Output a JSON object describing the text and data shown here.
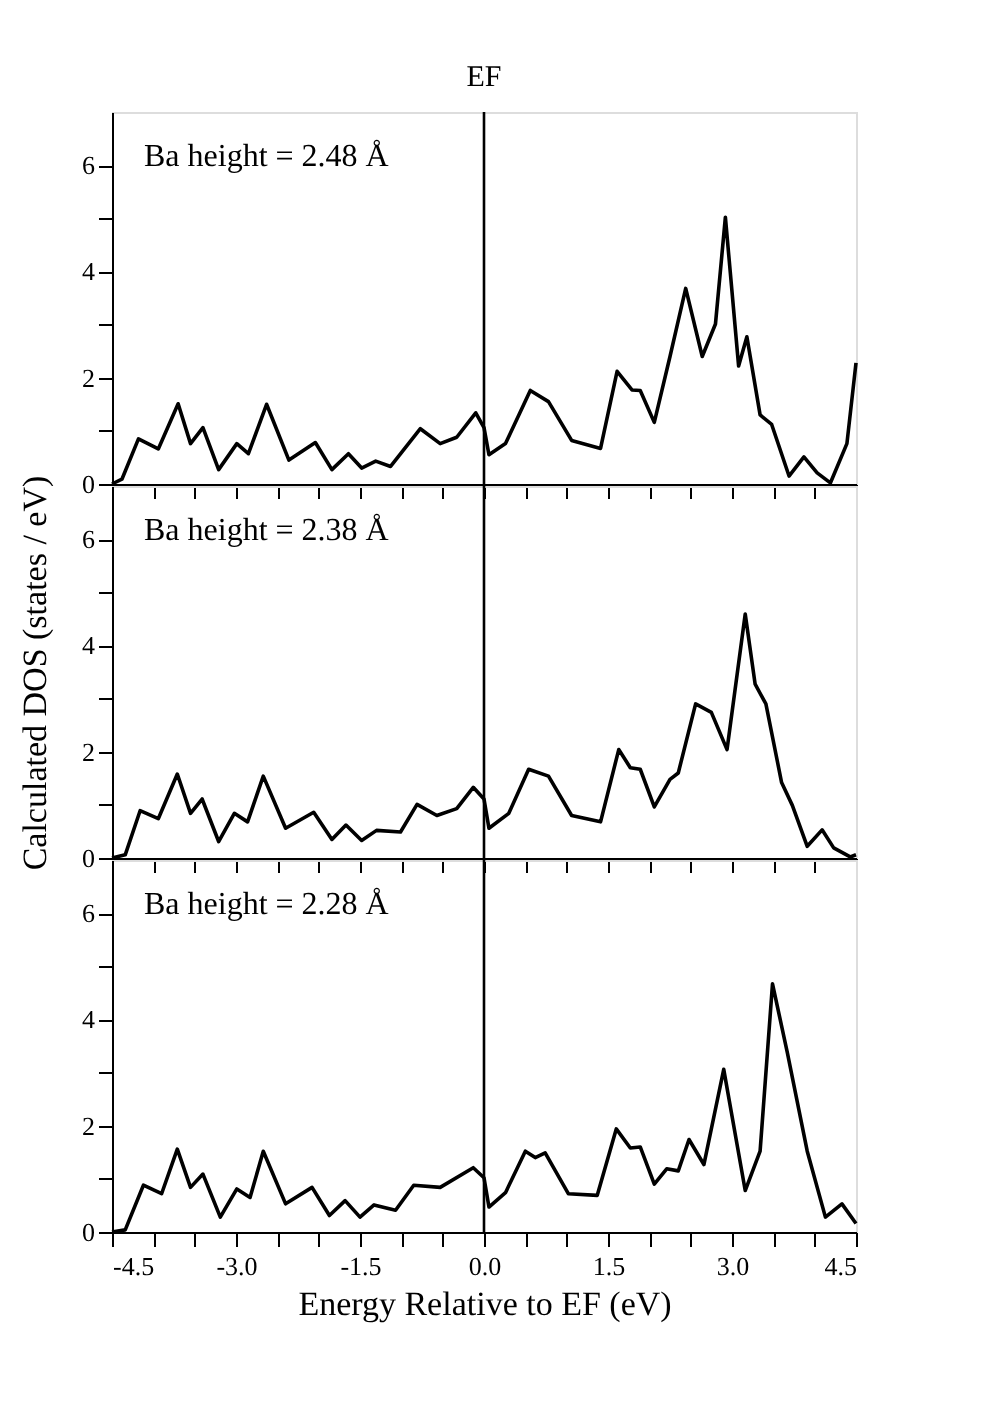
{
  "chart_data": [
    {
      "type": "line",
      "annotations": [
        "Ba height = 2.48 Å"
      ],
      "tick_labels": "y",
      "grid": false,
      "legend": false,
      "marker": "none",
      "line_style": "solid",
      "xlim": [
        -4.5,
        4.5
      ],
      "ylim": [
        0,
        7
      ],
      "xticks": [
        {
          "value": -4.5,
          "label": null
        },
        {
          "value": -4.0,
          "label": null
        },
        {
          "value": -3.5,
          "label": null
        },
        {
          "value": -3.0,
          "label": null
        },
        {
          "value": -2.5,
          "label": null
        },
        {
          "value": -2.0,
          "label": null
        },
        {
          "value": -1.5,
          "label": null
        },
        {
          "value": -1.0,
          "label": null
        },
        {
          "value": -0.5,
          "label": null
        },
        {
          "value": 0.0,
          "label": null
        },
        {
          "value": 0.5,
          "label": null
        },
        {
          "value": 1.0,
          "label": null
        },
        {
          "value": 1.5,
          "label": null
        },
        {
          "value": 2.0,
          "label": null
        },
        {
          "value": 2.5,
          "label": null
        },
        {
          "value": 3.0,
          "label": null
        },
        {
          "value": 3.5,
          "label": null
        },
        {
          "value": 4.0,
          "label": null
        },
        {
          "value": 4.5,
          "label": null
        }
      ],
      "yticks": [
        0,
        {
          "value": 1,
          "label": null
        },
        2,
        {
          "value": 3,
          "label": null
        },
        4,
        {
          "value": 5,
          "label": null
        },
        6
      ],
      "ref_lines": [
        {
          "axis": "x",
          "value": 0,
          "label": "EF"
        }
      ],
      "x": [
        -4.5,
        -4.38,
        -4.18,
        -3.94,
        -3.7,
        -3.55,
        -3.4,
        -3.21,
        -2.99,
        -2.85,
        -2.63,
        -2.36,
        -2.04,
        -1.84,
        -1.64,
        -1.48,
        -1.31,
        -1.13,
        -0.77,
        -0.53,
        -0.33,
        -0.1,
        0,
        0.06,
        0.26,
        0.56,
        0.78,
        1.06,
        1.41,
        1.61,
        1.79,
        1.89,
        2.06,
        2.25,
        2.44,
        2.64,
        2.8,
        2.92,
        3.08,
        3.18,
        3.34,
        3.48,
        3.69,
        3.87,
        4.03,
        4.19,
        4.39,
        4.5
      ],
      "series": [
        {
          "color": "#000000",
          "values": [
            0,
            0.09,
            0.85,
            0.66,
            1.51,
            0.76,
            1.06,
            0.27,
            0.76,
            0.57,
            1.5,
            0.45,
            0.78,
            0.27,
            0.57,
            0.3,
            0.43,
            0.33,
            1.04,
            0.76,
            0.88,
            1.34,
            1.06,
            0.55,
            0.76,
            1.76,
            1.55,
            0.82,
            0.67,
            2.12,
            1.77,
            1.76,
            1.16,
            2.4,
            3.68,
            2.4,
            3.01,
            5.02,
            2.22,
            2.77,
            1.3,
            1.12,
            0.15,
            0.51,
            0.21,
            0.02,
            0.76,
            2.28
          ]
        }
      ]
    },
    {
      "type": "line",
      "annotations": [
        "Ba height = 2.38 Å"
      ],
      "ylabel": "Calculated DOS (states / eV)",
      "tick_labels": "y",
      "grid": false,
      "legend": false,
      "marker": "none",
      "line_style": "solid",
      "xlim": [
        -4.5,
        4.5
      ],
      "ylim": [
        0,
        7
      ],
      "xticks": [
        {
          "value": -4.5,
          "label": null
        },
        {
          "value": -4.0,
          "label": null
        },
        {
          "value": -3.5,
          "label": null
        },
        {
          "value": -3.0,
          "label": null
        },
        {
          "value": -2.5,
          "label": null
        },
        {
          "value": -2.0,
          "label": null
        },
        {
          "value": -1.5,
          "label": null
        },
        {
          "value": -1.0,
          "label": null
        },
        {
          "value": -0.5,
          "label": null
        },
        {
          "value": 0.0,
          "label": null
        },
        {
          "value": 0.5,
          "label": null
        },
        {
          "value": 1.0,
          "label": null
        },
        {
          "value": 1.5,
          "label": null
        },
        {
          "value": 2.0,
          "label": null
        },
        {
          "value": 2.5,
          "label": null
        },
        {
          "value": 3.0,
          "label": null
        },
        {
          "value": 3.5,
          "label": null
        },
        {
          "value": 4.0,
          "label": null
        },
        {
          "value": 4.5,
          "label": null
        }
      ],
      "yticks": [
        0,
        {
          "value": 1,
          "label": null
        },
        2,
        {
          "value": 3,
          "label": null
        },
        4,
        {
          "value": 5,
          "label": null
        },
        6
      ],
      "ref_lines": [
        {
          "axis": "x",
          "value": 0,
          "label": null
        }
      ],
      "x": [
        -4.5,
        -4.34,
        -4.16,
        -3.94,
        -3.71,
        -3.55,
        -3.41,
        -3.21,
        -3.02,
        -2.86,
        -2.67,
        -2.4,
        -2.06,
        -1.84,
        -1.67,
        -1.48,
        -1.3,
        -1.01,
        -0.81,
        -0.57,
        -0.33,
        -0.13,
        0,
        0.06,
        0.3,
        0.54,
        0.78,
        1.06,
        1.41,
        1.63,
        1.77,
        1.89,
        2.06,
        2.25,
        2.35,
        2.56,
        2.75,
        2.94,
        3.16,
        3.28,
        3.41,
        3.6,
        3.73,
        3.91,
        4.09,
        4.23,
        4.43,
        4.5
      ],
      "series": [
        {
          "color": "#000000",
          "values": [
            0,
            0.06,
            0.89,
            0.74,
            1.58,
            0.84,
            1.11,
            0.31,
            0.84,
            0.68,
            1.54,
            0.56,
            0.86,
            0.35,
            0.62,
            0.33,
            0.52,
            0.49,
            1.01,
            0.8,
            0.93,
            1.33,
            1.11,
            0.56,
            0.84,
            1.67,
            1.54,
            0.8,
            0.68,
            2.04,
            1.7,
            1.67,
            0.96,
            1.48,
            1.6,
            2.9,
            2.74,
            2.04,
            4.59,
            3.27,
            2.9,
            1.42,
            0.99,
            0.22,
            0.53,
            0.19,
            0.02,
            0.06
          ]
        }
      ]
    },
    {
      "type": "line",
      "annotations": [
        "Ba height = 2.28 Å"
      ],
      "xlabel": "Energy Relative to EF (eV)",
      "grid": false,
      "legend": false,
      "marker": "none",
      "line_style": "solid",
      "xlim": [
        -4.5,
        4.5
      ],
      "ylim": [
        0,
        7
      ],
      "xticks": [
        -4.5,
        {
          "value": -4.0,
          "label": null
        },
        {
          "value": -3.5,
          "label": null
        },
        {
          "value": -3,
          "label": "-3.0"
        },
        {
          "value": -2.5,
          "label": null
        },
        {
          "value": -2.0,
          "label": null
        },
        -1.5,
        {
          "value": -1.0,
          "label": null
        },
        {
          "value": -0.5,
          "label": null
        },
        {
          "value": 0,
          "label": "0.0"
        },
        {
          "value": 0.5,
          "label": null
        },
        {
          "value": 1.0,
          "label": null
        },
        1.5,
        {
          "value": 2.0,
          "label": null
        },
        {
          "value": 2.5,
          "label": null
        },
        {
          "value": 3,
          "label": "3.0"
        },
        {
          "value": 3.5,
          "label": null
        },
        {
          "value": 4.0,
          "label": null
        },
        4.5
      ],
      "yticks": [
        0,
        {
          "value": 1,
          "label": null
        },
        2,
        {
          "value": 3,
          "label": null
        },
        4,
        {
          "value": 5,
          "label": null
        },
        6
      ],
      "ref_lines": [
        {
          "axis": "x",
          "value": 0,
          "label": null
        }
      ],
      "x": [
        -4.5,
        -4.34,
        -4.12,
        -3.9,
        -3.71,
        -3.55,
        -3.4,
        -3.19,
        -2.99,
        -2.83,
        -2.67,
        -2.4,
        -2.08,
        -1.87,
        -1.68,
        -1.5,
        -1.33,
        -1.07,
        -0.85,
        -0.53,
        -0.13,
        0,
        0.06,
        0.26,
        0.5,
        0.62,
        0.74,
        1.02,
        1.37,
        1.6,
        1.77,
        1.89,
        2.06,
        2.21,
        2.35,
        2.48,
        2.66,
        2.9,
        3.16,
        3.34,
        3.49,
        3.67,
        3.91,
        4.13,
        4.33,
        4.5
      ],
      "series": [
        {
          "color": "#000000",
          "values": [
            0,
            0.04,
            0.88,
            0.72,
            1.56,
            0.84,
            1.09,
            0.28,
            0.81,
            0.65,
            1.52,
            0.53,
            0.84,
            0.31,
            0.59,
            0.28,
            0.51,
            0.41,
            0.88,
            0.84,
            1.21,
            1.02,
            0.47,
            0.74,
            1.52,
            1.4,
            1.49,
            0.72,
            0.69,
            1.94,
            1.58,
            1.6,
            0.9,
            1.19,
            1.15,
            1.74,
            1.27,
            3.06,
            0.78,
            1.52,
            4.67,
            3.37,
            1.52,
            0.28,
            0.53,
            0.16
          ]
        }
      ]
    }
  ]
}
